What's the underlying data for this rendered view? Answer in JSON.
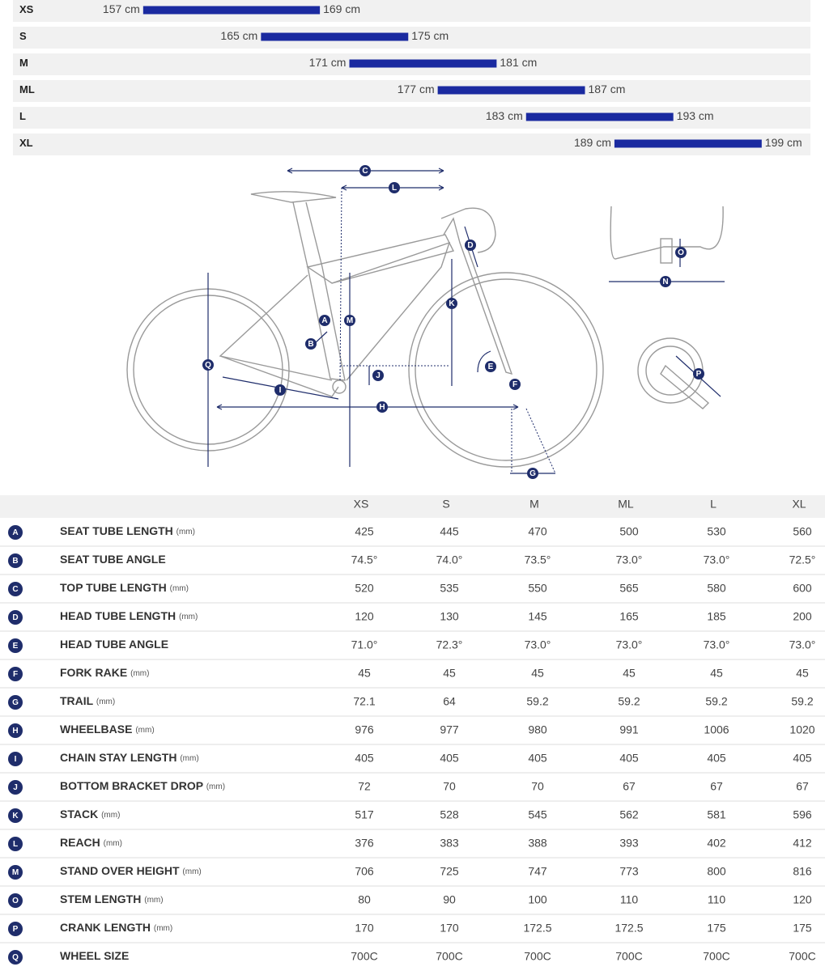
{
  "sizes": [
    {
      "size": "XS",
      "min": {
        "value": 157,
        "label": "157 cm"
      },
      "max": {
        "value": 169,
        "label": "169 cm"
      }
    },
    {
      "size": "S",
      "min": {
        "value": 165,
        "label": "165 cm"
      },
      "max": {
        "value": 175,
        "label": "175 cm"
      }
    },
    {
      "size": "M",
      "min": {
        "value": 171,
        "label": "171 cm"
      },
      "max": {
        "value": 181,
        "label": "181 cm"
      }
    },
    {
      "size": "ML",
      "min": {
        "value": 177,
        "label": "177 cm"
      },
      "max": {
        "value": 187,
        "label": "187 cm"
      }
    },
    {
      "size": "L",
      "min": {
        "value": 183,
        "label": "183 cm"
      },
      "max": {
        "value": 193,
        "label": "193 cm"
      }
    },
    {
      "size": "XL",
      "min": {
        "value": 189,
        "label": "189 cm"
      },
      "max": {
        "value": 199,
        "label": "199 cm"
      }
    }
  ],
  "diagram": {
    "labels": [
      "C",
      "L",
      "D",
      "K",
      "A",
      "M",
      "B",
      "Q",
      "J",
      "E",
      "F",
      "I",
      "H",
      "G",
      "O",
      "N",
      "P"
    ]
  },
  "table": {
    "columns": [
      "XS",
      "S",
      "M",
      "ML",
      "L",
      "XL"
    ],
    "rows": [
      {
        "letter": "A",
        "name": "SEAT TUBE LENGTH",
        "unit": "(mm)",
        "values": [
          "425",
          "445",
          "470",
          "500",
          "530",
          "560"
        ]
      },
      {
        "letter": "B",
        "name": "SEAT TUBE ANGLE",
        "values": [
          "74.5°",
          "74.0°",
          "73.5°",
          "73.0°",
          "73.0°",
          "72.5°"
        ]
      },
      {
        "letter": "C",
        "name": "TOP TUBE LENGTH",
        "unit": "(mm)",
        "values": [
          "520",
          "535",
          "550",
          "565",
          "580",
          "600"
        ]
      },
      {
        "letter": "D",
        "name": "HEAD TUBE LENGTH",
        "unit": "(mm)",
        "values": [
          "120",
          "130",
          "145",
          "165",
          "185",
          "200"
        ]
      },
      {
        "letter": "E",
        "name": "HEAD TUBE ANGLE",
        "values": [
          "71.0°",
          "72.3°",
          "73.0°",
          "73.0°",
          "73.0°",
          "73.0°"
        ]
      },
      {
        "letter": "F",
        "name": "FORK RAKE",
        "unit": "(mm)",
        "values": [
          "45",
          "45",
          "45",
          "45",
          "45",
          "45"
        ]
      },
      {
        "letter": "G",
        "name": "TRAIL",
        "unit": "(mm)",
        "values": [
          "72.1",
          "64",
          "59.2",
          "59.2",
          "59.2",
          "59.2"
        ]
      },
      {
        "letter": "H",
        "name": "WHEELBASE",
        "unit": "(mm)",
        "values": [
          "976",
          "977",
          "980",
          "991",
          "1006",
          "1020"
        ]
      },
      {
        "letter": "I",
        "name": "CHAIN STAY LENGTH",
        "unit": "(mm)",
        "values": [
          "405",
          "405",
          "405",
          "405",
          "405",
          "405"
        ]
      },
      {
        "letter": "J",
        "name": "BOTTOM BRACKET DROP",
        "unit": "(mm)",
        "values": [
          "72",
          "70",
          "70",
          "67",
          "67",
          "67"
        ]
      },
      {
        "letter": "K",
        "name": "STACK",
        "unit": "(mm)",
        "values": [
          "517",
          "528",
          "545",
          "562",
          "581",
          "596"
        ]
      },
      {
        "letter": "L",
        "name": "REACH",
        "unit": "(mm)",
        "values": [
          "376",
          "383",
          "388",
          "393",
          "402",
          "412"
        ]
      },
      {
        "letter": "M",
        "name": "STAND OVER HEIGHT",
        "unit": "(mm)",
        "values": [
          "706",
          "725",
          "747",
          "773",
          "800",
          "816"
        ]
      },
      {
        "letter": "O",
        "name": "STEM LENGTH",
        "unit": "(mm)",
        "values": [
          "80",
          "90",
          "100",
          "110",
          "110",
          "120"
        ]
      },
      {
        "letter": "P",
        "name": "CRANK LENGTH",
        "unit": "(mm)",
        "values": [
          "170",
          "170",
          "172.5",
          "172.5",
          "175",
          "175"
        ]
      },
      {
        "letter": "Q",
        "name": "WHEEL SIZE",
        "values": [
          "700C",
          "700C",
          "700C",
          "700C",
          "700C",
          "700C"
        ]
      }
    ]
  }
}
